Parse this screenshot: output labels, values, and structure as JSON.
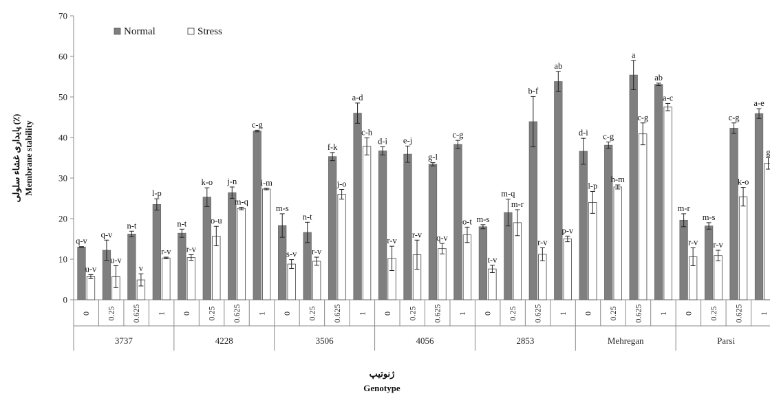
{
  "chart_data": {
    "type": "bar",
    "ylabel": "Membrane stability",
    "ylabel_fa": "پایداری غشاء سلولی (٪)",
    "xlabel": "Genotype",
    "xlabel_fa": "ژنوتیپ",
    "ylim": [
      0,
      70
    ],
    "yticks": [
      0,
      10,
      20,
      30,
      40,
      50,
      60,
      70
    ],
    "grid": false,
    "legend_position": "top-left",
    "groups": [
      "3737",
      "4228",
      "3506",
      "4056",
      "2853",
      "Mehregan",
      "Parsi"
    ],
    "levels": [
      "0",
      "0.25",
      "0.625",
      "1"
    ],
    "series": [
      {
        "name": "Normal",
        "color": "#7f7f7f",
        "values": [
          13.0,
          12.2,
          16.2,
          23.5,
          16.4,
          25.3,
          26.4,
          41.6,
          18.3,
          16.6,
          35.3,
          46.0,
          36.7,
          35.9,
          33.4,
          38.3,
          18.0,
          21.5,
          43.9,
          53.8,
          36.6,
          38.1,
          55.4,
          53.1,
          19.6,
          18.2,
          42.3,
          45.9
        ],
        "errors": [
          0.1,
          2.5,
          0.7,
          1.4,
          1.0,
          2.3,
          1.4,
          0.2,
          2.9,
          2.5,
          1.0,
          2.5,
          1.0,
          2.0,
          0.4,
          1.0,
          0.5,
          3.3,
          6.2,
          2.5,
          3.2,
          0.8,
          3.6,
          0.3,
          1.6,
          0.8,
          1.3,
          1.2
        ],
        "letters": [
          "q-v",
          "q-v",
          "n-t",
          "l-p",
          "n-t",
          "k-o",
          "j-n",
          "c-g",
          "m-s",
          "n-t",
          "f-k",
          "a-d",
          "d-i",
          "e-j",
          "g-l",
          "c-g",
          "m-s",
          "m-q",
          "b-f",
          "ab",
          "d-i",
          "c-g",
          "a",
          "ab",
          "m-r",
          "m-s",
          "c-g",
          "a-e"
        ]
      },
      {
        "name": "Stress",
        "color": "#ffffff",
        "values": [
          5.7,
          5.7,
          4.9,
          10.3,
          10.4,
          15.7,
          22.5,
          27.3,
          8.8,
          9.5,
          26.0,
          37.8,
          10.2,
          11.1,
          12.6,
          16.0,
          7.6,
          19.0,
          11.2,
          15.0,
          24.0,
          27.8,
          40.9,
          47.5,
          10.6,
          10.9,
          25.4,
          33.6
        ],
        "errors": [
          0.5,
          2.7,
          1.5,
          0.2,
          0.7,
          2.4,
          0.3,
          0.2,
          1.1,
          1.0,
          1.2,
          2.1,
          3.0,
          3.6,
          1.3,
          1.9,
          0.9,
          3.2,
          1.6,
          0.7,
          2.7,
          0.5,
          2.7,
          0.9,
          2.2,
          1.3,
          2.3,
          1.4
        ],
        "letters": [
          "u-v",
          "u-v",
          "v",
          "r-v",
          "r-v",
          "o-u",
          "m-q",
          "i-m",
          "s-v",
          "r-v",
          "j-o",
          "c-h",
          "r-v",
          "r-v",
          "q-v",
          "o-t",
          "t-v",
          "m-r",
          "r-v",
          "p-v",
          "l-p",
          "h-m",
          "c-g",
          "a-c",
          "r-v",
          "r-v",
          "k-o",
          "g"
        ]
      }
    ]
  }
}
